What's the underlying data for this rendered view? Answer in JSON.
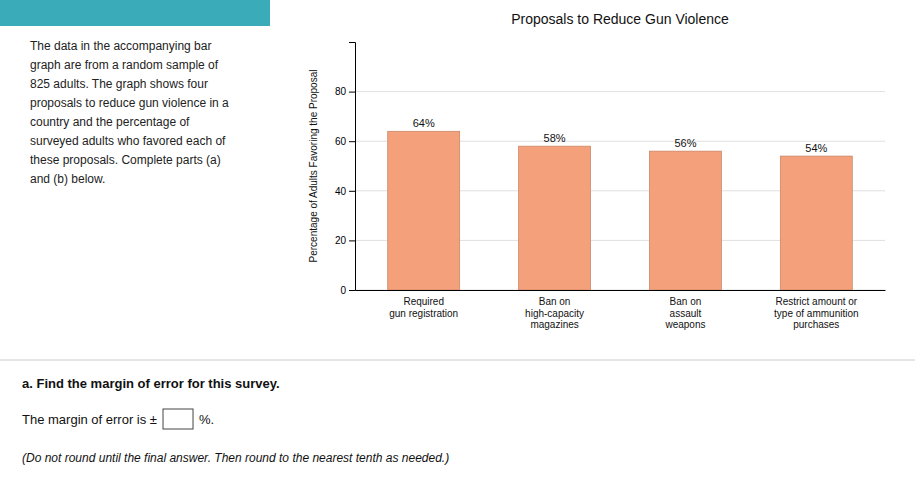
{
  "chart_data": {
    "type": "bar",
    "title": "Proposals to Reduce Gun Violence",
    "categories": [
      "Required\ngun registration",
      "Ban on\nhigh-capacity\nmagazines",
      "Ban on\nassault\nweapons",
      "Restrict amount or\ntype of ammunition\npurchases"
    ],
    "values": [
      64,
      58,
      56,
      54
    ],
    "value_labels": [
      "64%",
      "58%",
      "56%",
      "54%"
    ],
    "data_labels": true,
    "color": "#F4A07A",
    "ylabel": "Percentage of Adults Favoring the Proposal",
    "ylim": [
      0,
      100
    ],
    "yticks": [
      0,
      20,
      40,
      60,
      80
    ],
    "grid": true,
    "annotations": [
      "The data in the accompanying bar\ngraph are from a random sample of\n825 adults. The graph shows four\nproposals to reduce gun violence in a\ncountry and the percentage of\nsurveyed adults who favored each of\nthese proposals. Complete parts (a)\nand (b) below.",
      "a. Find the margin of error for this survey.",
      "The margin of error is ±",
      "%.",
      "(Do not round until the final answer. Then round to the nearest tenth as needed.)"
    ]
  }
}
